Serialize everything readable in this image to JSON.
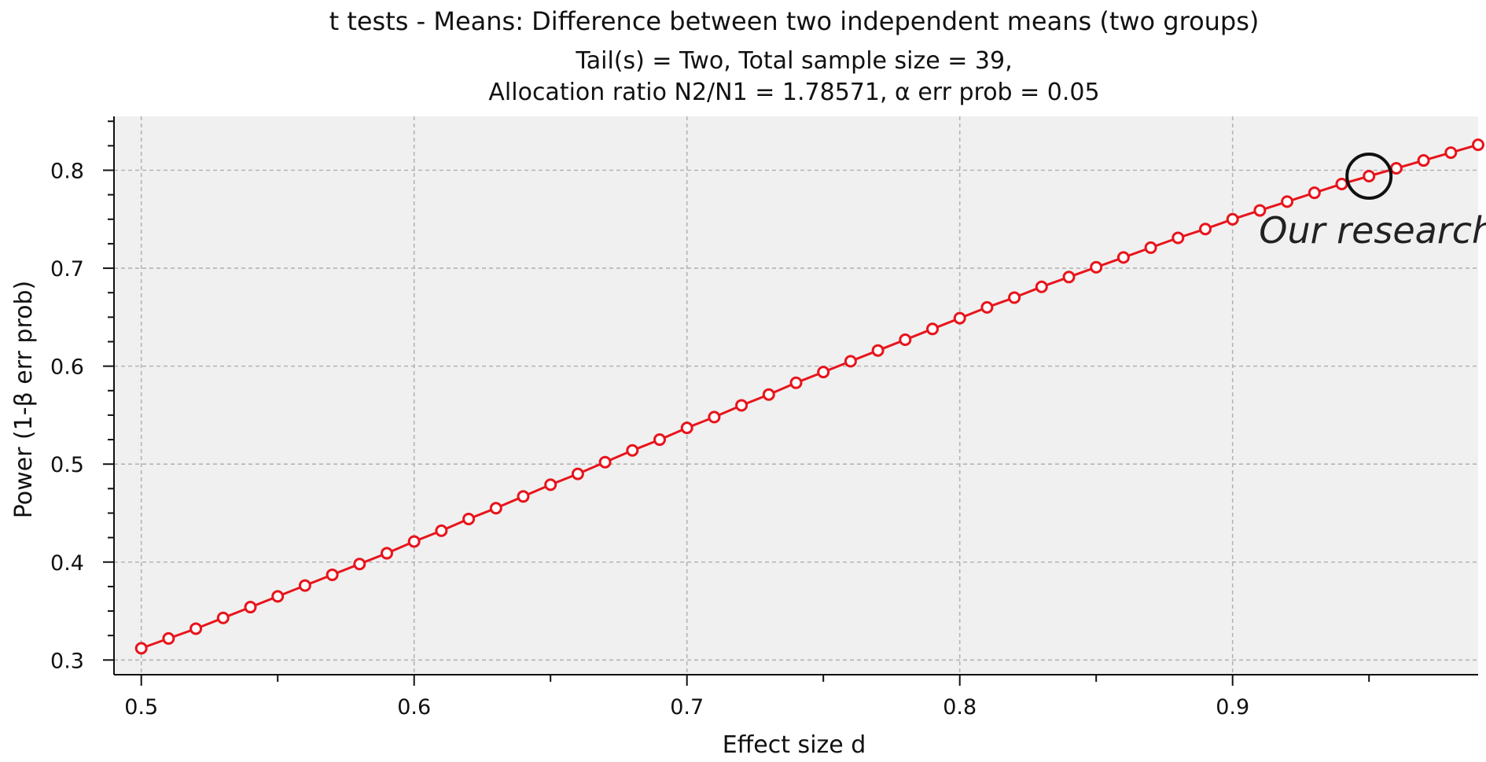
{
  "chart_data": {
    "type": "line",
    "title": "t tests - Means: Difference between two independent means (two groups)",
    "subtitle_lines": [
      "Tail(s) = Two, Total sample size = 39,",
      "Allocation ratio N2/N1 = 1.78571, α err prob = 0.05"
    ],
    "xlabel": "Effect size d",
    "ylabel": "Power (1-β err prob)",
    "xlim": [
      0.49,
      0.99
    ],
    "ylim": [
      0.285,
      0.855
    ],
    "x_ticks": [
      0.5,
      0.6,
      0.7,
      0.8,
      0.9
    ],
    "x_tick_labels": [
      "0.5",
      "0.6",
      "0.7",
      "0.8",
      "0.9"
    ],
    "y_ticks": [
      0.3,
      0.4,
      0.5,
      0.6,
      0.7,
      0.8
    ],
    "y_tick_labels": [
      "0.3",
      "0.4",
      "0.5",
      "0.6",
      "0.7",
      "0.8"
    ],
    "grid": true,
    "series": [
      {
        "color": "#e8141b",
        "x": [
          0.5,
          0.51,
          0.52,
          0.53,
          0.54,
          0.55,
          0.56,
          0.57,
          0.58,
          0.59,
          0.6,
          0.61,
          0.62,
          0.63,
          0.64,
          0.65,
          0.66,
          0.67,
          0.68,
          0.69,
          0.7,
          0.71,
          0.72,
          0.73,
          0.74,
          0.75,
          0.76,
          0.77,
          0.78,
          0.79,
          0.8,
          0.81,
          0.82,
          0.83,
          0.84,
          0.85,
          0.86,
          0.87,
          0.88,
          0.89,
          0.9,
          0.91,
          0.92,
          0.93,
          0.94,
          0.95,
          0.96,
          0.97,
          0.98,
          0.99
        ],
        "y": [
          0.312,
          0.322,
          0.332,
          0.343,
          0.354,
          0.365,
          0.376,
          0.387,
          0.398,
          0.409,
          0.421,
          0.432,
          0.444,
          0.455,
          0.467,
          0.479,
          0.49,
          0.502,
          0.514,
          0.525,
          0.537,
          0.548,
          0.56,
          0.571,
          0.583,
          0.594,
          0.605,
          0.616,
          0.627,
          0.638,
          0.649,
          0.66,
          0.67,
          0.681,
          0.691,
          0.701,
          0.711,
          0.721,
          0.731,
          0.74,
          0.75,
          0.759,
          0.768,
          0.777,
          0.786,
          0.794,
          0.802,
          0.81,
          0.818,
          0.826
        ]
      }
    ],
    "annotation": {
      "text": "Our research",
      "x": 0.95,
      "y": 0.794
    }
  },
  "colors": {
    "plot_background": "#f0f0f0",
    "grid": "#b4b4b4",
    "line": "#e8141b",
    "marker_fill": "#ffffff",
    "annotation_circle": "#111111",
    "text": "#111111"
  }
}
